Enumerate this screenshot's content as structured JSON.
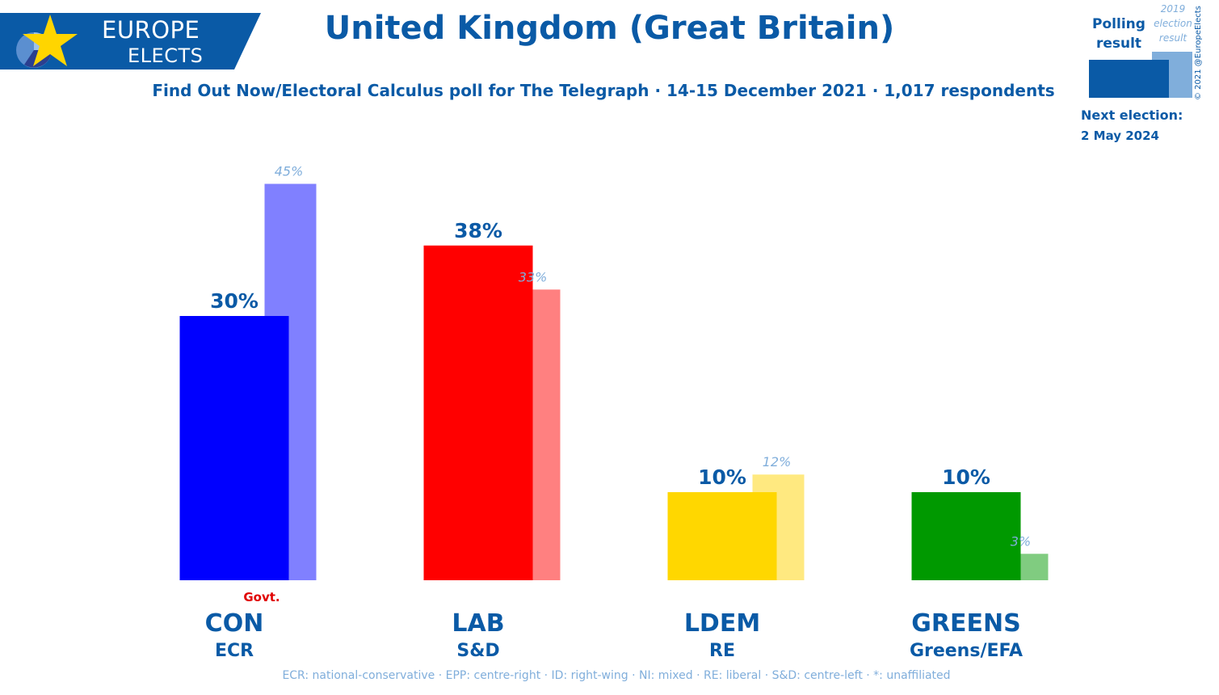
{
  "branding": {
    "line1": "EUROPE",
    "line2": "ELECTS"
  },
  "header": {
    "title": "United Kingdom (Great Britain)",
    "subtitle": "Find Out Now/Electoral Calculus poll for The Telegraph · 14-15 December 2021 · 1,017 respondents"
  },
  "legend": {
    "polling_label": "Polling result",
    "previous_label": "2019 election result",
    "copyright": "© 2021 @EuropeElects",
    "next_election_label": "Next election:",
    "next_election_date": "2 May 2024"
  },
  "footnote": "ECR: national-conservative · EPP: centre-right · ID: right-wing · NI: mixed · RE: liberal · S&D: centre-left · *: unaffiliated",
  "colors": {
    "brand_blue": "#0a5aa6",
    "prev_label": "#80aedb",
    "govt": "#e00000"
  },
  "chart_data": {
    "type": "bar",
    "categories": [
      "CON",
      "LAB",
      "LDEM",
      "GREENS"
    ],
    "groups": [
      "ECR",
      "S&D",
      "RE",
      "Greens/EFA"
    ],
    "series": [
      {
        "name": "Polling result",
        "values": [
          30,
          38,
          10,
          10
        ],
        "labels": [
          "30%",
          "38%",
          "10%",
          "10%"
        ]
      },
      {
        "name": "2019 election result",
        "values": [
          45,
          33,
          12,
          3
        ],
        "labels": [
          "45%",
          "33%",
          "12%",
          "3%"
        ]
      }
    ],
    "bar_colors": [
      "#0000ff",
      "#ff0000",
      "#ffd700",
      "#009900"
    ],
    "prev_colors": [
      "#8080ff",
      "#ff8080",
      "#ffe980",
      "#80cc80"
    ],
    "annotations": [
      {
        "category": "CON",
        "text": "Govt."
      }
    ],
    "ylim": [
      0,
      45
    ]
  }
}
